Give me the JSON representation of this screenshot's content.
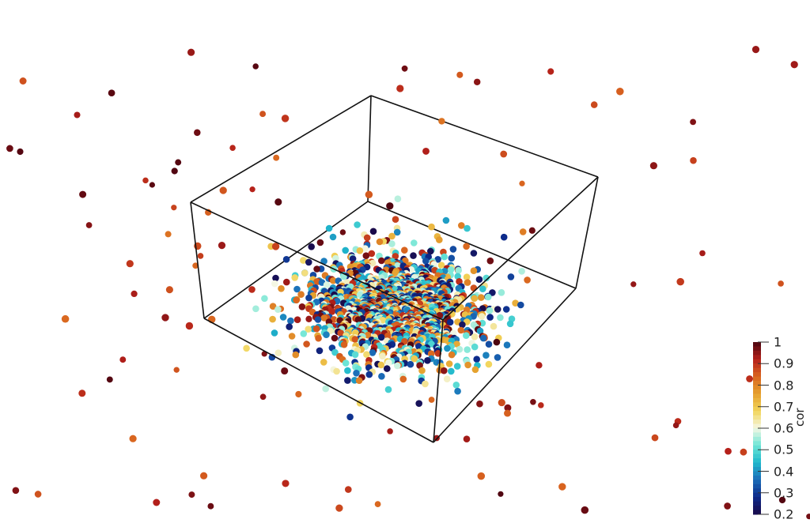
{
  "chart_data": {
    "type": "scatter",
    "title": "",
    "view": "3d",
    "colorbar": {
      "title": "cor",
      "range": [
        0.2,
        1
      ],
      "ticks": [
        {
          "value": 1,
          "label": "1"
        },
        {
          "value": 0.9,
          "label": "0.9"
        },
        {
          "value": 0.8,
          "label": "0.8"
        },
        {
          "value": 0.7,
          "label": "0.7"
        },
        {
          "value": 0.6,
          "label": "0.6"
        },
        {
          "value": 0.5,
          "label": "0.5"
        },
        {
          "value": 0.4,
          "label": "0.4"
        },
        {
          "value": 0.3,
          "label": "0.3"
        },
        {
          "value": 0.2,
          "label": "0.2"
        }
      ],
      "colormap": [
        "#1a0a4a",
        "#0d2a8a",
        "#1b6cb8",
        "#1fb8cc",
        "#6ee6d6",
        "#f4f7e4",
        "#f2d55a",
        "#e5a02e",
        "#d9651f",
        "#b5201a",
        "#4a0410"
      ]
    },
    "bounding_box": "wireframe",
    "background": "#ffffff"
  }
}
